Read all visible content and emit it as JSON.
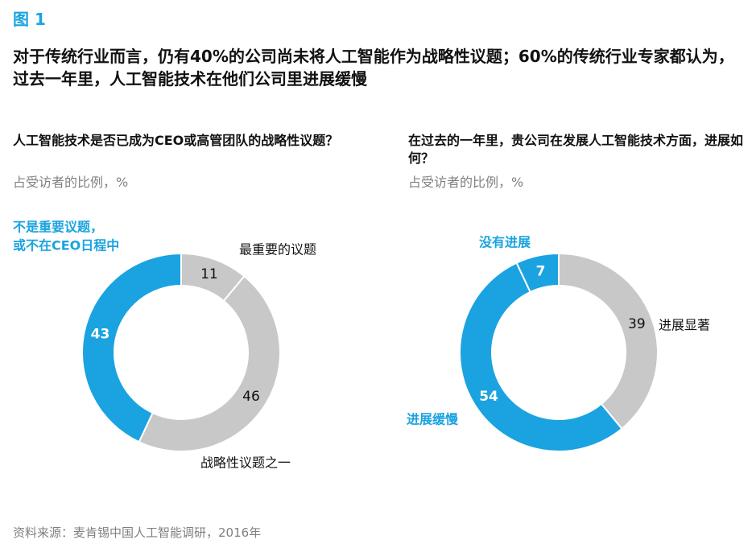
{
  "figure_label": "图 1",
  "headline": "对于传统行业而言，仍有40%的公司尚未将人工智能作为战略性议题；60%的传统行业专家都认为，过去一年里，人工智能技术在他们公司里进展缓慢",
  "source": "资料来源：麦肯锡中国人工智能调研，2016年",
  "colors": {
    "accent": "#1aa3e0",
    "gray": "#c8c8c8",
    "text": "#111111",
    "muted": "#808080"
  },
  "chart_data": [
    {
      "type": "pie",
      "variant": "donut",
      "title": "人工智能技术是否已成为CEO或高管团队的战略性议题？",
      "subtitle": "占受访者的比例，%",
      "slices": [
        {
          "label": "最重要的议题",
          "value": 11,
          "color": "#c8c8c8"
        },
        {
          "label": "战略性议题之一",
          "value": 46,
          "color": "#c8c8c8"
        },
        {
          "label": "不是重要议题，或不在CEO日程中",
          "value": 43,
          "color": "#1aa3e0"
        }
      ]
    },
    {
      "type": "pie",
      "variant": "donut",
      "title": "在过去的一年里，贵公司在发展人工智能技术方面，进展如何？",
      "subtitle": "占受访者的比例，%",
      "slices": [
        {
          "label": "进展显著",
          "value": 39,
          "color": "#c8c8c8"
        },
        {
          "label": "进展缓慢",
          "value": 54,
          "color": "#1aa3e0"
        },
        {
          "label": "没有进展",
          "value": 7,
          "color": "#1aa3e0"
        }
      ]
    }
  ]
}
